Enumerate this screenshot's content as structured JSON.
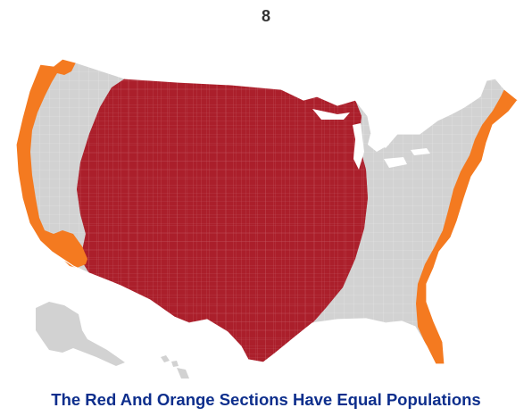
{
  "page_number": "8",
  "caption": "The Red And Orange Sections Have Equal Populations",
  "colors": {
    "red_region": "#ab1f2b",
    "orange_region": "#f47a20",
    "land_gray": "#d2d2d2",
    "county_lines": "#ffffff",
    "caption_text": "#0d2e8c"
  },
  "regions": [
    {
      "name": "red",
      "description_label": "Red section"
    },
    {
      "name": "orange",
      "description_label": "Orange section"
    }
  ]
}
